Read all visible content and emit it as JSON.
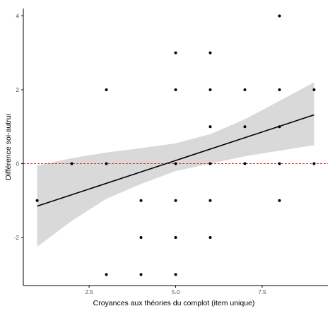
{
  "chart_data": {
    "type": "scatter",
    "title": "",
    "xlabel": "Croyances aux théories du complot (item unique)",
    "ylabel": "Différence soi-autrui",
    "xlim": [
      0.6,
      9.4
    ],
    "ylim": [
      -3.3,
      4.2
    ],
    "x_ticks": [
      2.5,
      5.0,
      7.5
    ],
    "x_tick_labels": [
      "2.5",
      "5.0",
      "7.5"
    ],
    "y_ticks": [
      -2,
      0,
      2,
      4
    ],
    "y_tick_labels": [
      "-2",
      "0",
      "2",
      "4"
    ],
    "grid": false,
    "legend": "none",
    "points": [
      {
        "x": 1,
        "y": -1
      },
      {
        "x": 2,
        "y": 0
      },
      {
        "x": 3,
        "y": 2
      },
      {
        "x": 3,
        "y": 0
      },
      {
        "x": 3,
        "y": -3
      },
      {
        "x": 4,
        "y": -1
      },
      {
        "x": 4,
        "y": -2
      },
      {
        "x": 4,
        "y": -3
      },
      {
        "x": 5,
        "y": 3
      },
      {
        "x": 5,
        "y": 2
      },
      {
        "x": 5,
        "y": 0
      },
      {
        "x": 5,
        "y": -1
      },
      {
        "x": 5,
        "y": -2
      },
      {
        "x": 5,
        "y": -3
      },
      {
        "x": 6,
        "y": 3
      },
      {
        "x": 6,
        "y": 2
      },
      {
        "x": 6,
        "y": 1
      },
      {
        "x": 6,
        "y": 0
      },
      {
        "x": 6,
        "y": -1
      },
      {
        "x": 6,
        "y": -2
      },
      {
        "x": 7,
        "y": 2
      },
      {
        "x": 7,
        "y": 1
      },
      {
        "x": 7,
        "y": 0
      },
      {
        "x": 8,
        "y": 4
      },
      {
        "x": 8,
        "y": 2
      },
      {
        "x": 8,
        "y": 1
      },
      {
        "x": 8,
        "y": 0
      },
      {
        "x": 8,
        "y": -1
      },
      {
        "x": 9,
        "y": 2
      },
      {
        "x": 9,
        "y": 0
      }
    ],
    "regression_line": {
      "x": [
        1,
        9
      ],
      "y": [
        -1.15,
        1.32
      ],
      "color": "#000000"
    },
    "confidence_band": {
      "x": [
        1.0,
        2.0,
        3.0,
        4.0,
        5.0,
        6.0,
        7.0,
        8.0,
        9.0
      ],
      "upper": [
        -0.05,
        0.15,
        0.3,
        0.42,
        0.55,
        0.8,
        1.2,
        1.7,
        2.2
      ],
      "lower": [
        -2.25,
        -1.55,
        -0.95,
        -0.55,
        -0.2,
        0.0,
        0.2,
        0.35,
        0.5
      ],
      "color": "#d9d9d9"
    },
    "reference_line": {
      "y": 0,
      "color": "#cc3333",
      "style": "dashed"
    },
    "point_color": "#000000"
  }
}
